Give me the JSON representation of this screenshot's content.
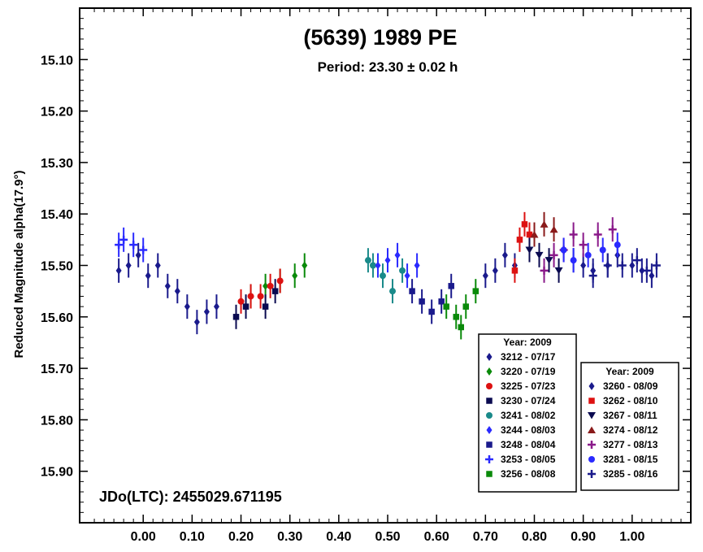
{
  "chart_data": {
    "type": "scatter",
    "title": "(5639) 1989 PE",
    "subtitle": "Period: 23.30 ± 0.02 h",
    "ylabel": "Reduced Magnitude alpha(17.9°)",
    "annotation": "JDo(LTC): 2455029.671195",
    "xlim": [
      -0.13,
      1.12
    ],
    "ylim": [
      15.0,
      16.0
    ],
    "y_inverted": true,
    "x_ticks": [
      "0.00",
      "0.10",
      "0.20",
      "0.30",
      "0.40",
      "0.50",
      "0.60",
      "0.70",
      "0.80",
      "0.90",
      "1.00"
    ],
    "y_ticks": [
      "15.10",
      "15.20",
      "15.30",
      "15.40",
      "15.50",
      "15.60",
      "15.70",
      "15.80",
      "15.90"
    ],
    "legend_left": {
      "title": "Year: 2009",
      "entries": [
        "3212 - 07/17",
        "3220 - 07/19",
        "3225 - 07/23",
        "3230 - 07/24",
        "3241 - 08/02",
        "3244 - 08/03",
        "3248 - 08/04",
        "3253 - 08/05",
        "3256 - 08/08"
      ]
    },
    "legend_right": {
      "title": "Year: 2009",
      "entries": [
        "3260 - 08/09",
        "3262 - 08/10",
        "3267 - 08/11",
        "3274 - 08/12",
        "3277 - 08/13",
        "3281 - 08/15",
        "3285 - 08/16"
      ]
    },
    "series": [
      {
        "name": "3212 - 07/17",
        "color": "#1a1a8c",
        "marker": "diamond",
        "x": [
          -0.05,
          -0.03,
          -0.01,
          0.01,
          0.03,
          0.05,
          0.07,
          0.09,
          0.11,
          0.13,
          0.15
        ],
        "y": [
          15.51,
          15.5,
          15.48,
          15.52,
          15.5,
          15.54,
          15.55,
          15.58,
          15.61,
          15.59,
          15.58
        ]
      },
      {
        "name": "3220 - 07/19",
        "color": "#0a8a0a",
        "marker": "diamond",
        "x": [
          0.22,
          0.25,
          0.28,
          0.31,
          0.33
        ],
        "y": [
          15.56,
          15.54,
          15.53,
          15.52,
          15.5
        ]
      },
      {
        "name": "3225 - 07/23",
        "color": "#dd1111",
        "marker": "circle",
        "x": [
          0.2,
          0.22,
          0.24,
          0.26,
          0.28
        ],
        "y": [
          15.57,
          15.56,
          15.56,
          15.54,
          15.53
        ]
      },
      {
        "name": "3230 - 07/24",
        "color": "#0a0a50",
        "marker": "square",
        "x": [
          0.19,
          0.21,
          0.25,
          0.27
        ],
        "y": [
          15.6,
          15.58,
          15.58,
          15.55
        ]
      },
      {
        "name": "3241 - 08/02",
        "color": "#1a8a8a",
        "marker": "circle",
        "x": [
          0.46,
          0.47,
          0.49,
          0.51,
          0.53
        ],
        "y": [
          15.49,
          15.5,
          15.52,
          15.55,
          15.51
        ]
      },
      {
        "name": "3244 - 08/03",
        "color": "#2a2aff",
        "marker": "diamond",
        "x": [
          0.48,
          0.5,
          0.52,
          0.54,
          0.56
        ],
        "y": [
          15.5,
          15.49,
          15.48,
          15.52,
          15.5
        ]
      },
      {
        "name": "3248 - 08/04",
        "color": "#1a1a8c",
        "marker": "square",
        "x": [
          0.55,
          0.57,
          0.59,
          0.61,
          0.63
        ],
        "y": [
          15.55,
          15.57,
          15.59,
          15.57,
          15.54
        ]
      },
      {
        "name": "3253 - 08/05",
        "color": "#2a2aff",
        "marker": "plus",
        "x": [
          -0.05,
          -0.04,
          -0.02,
          0.0
        ],
        "y": [
          15.46,
          15.45,
          15.46,
          15.47
        ]
      },
      {
        "name": "3256 - 08/08",
        "color": "#0a8a0a",
        "marker": "square",
        "x": [
          0.62,
          0.64,
          0.65,
          0.66,
          0.68
        ],
        "y": [
          15.58,
          15.6,
          15.62,
          15.58,
          15.55
        ]
      },
      {
        "name": "3260 - 08/09",
        "color": "#1a1a8c",
        "marker": "diamond",
        "x": [
          0.7,
          0.72,
          0.74,
          0.76,
          0.88,
          0.9,
          0.92,
          0.95,
          0.97,
          1.0,
          1.02,
          1.04
        ],
        "y": [
          15.52,
          15.51,
          15.48,
          15.5,
          15.49,
          15.5,
          15.51,
          15.5,
          15.48,
          15.5,
          15.51,
          15.52
        ]
      },
      {
        "name": "3262 - 08/10",
        "color": "#dd1111",
        "marker": "square",
        "x": [
          0.76,
          0.77,
          0.78,
          0.79
        ],
        "y": [
          15.51,
          15.45,
          15.42,
          15.44
        ]
      },
      {
        "name": "3267 - 08/11",
        "color": "#0a0a50",
        "marker": "triangle-down",
        "x": [
          0.79,
          0.81,
          0.83,
          0.85
        ],
        "y": [
          15.47,
          15.48,
          15.49,
          15.51
        ]
      },
      {
        "name": "3274 - 08/12",
        "color": "#8a1a1a",
        "marker": "triangle-up",
        "x": [
          0.8,
          0.82,
          0.84
        ],
        "y": [
          15.44,
          15.42,
          15.43
        ]
      },
      {
        "name": "3277 - 08/13",
        "color": "#8a1a8a",
        "marker": "plus",
        "x": [
          0.82,
          0.84,
          0.86,
          0.88,
          0.9,
          0.93,
          0.96
        ],
        "y": [
          15.51,
          15.48,
          15.47,
          15.44,
          15.46,
          15.44,
          15.43
        ]
      },
      {
        "name": "3281 - 08/15",
        "color": "#2a2aff",
        "marker": "circle",
        "x": [
          0.86,
          0.88,
          0.91,
          0.94,
          0.97
        ],
        "y": [
          15.47,
          15.49,
          15.48,
          15.47,
          15.46
        ]
      },
      {
        "name": "3285 - 08/16",
        "color": "#1a1a8c",
        "marker": "plus",
        "x": [
          0.92,
          0.95,
          0.98,
          1.01,
          1.03,
          1.05
        ],
        "y": [
          15.52,
          15.5,
          15.5,
          15.49,
          15.51,
          15.5
        ]
      }
    ]
  }
}
